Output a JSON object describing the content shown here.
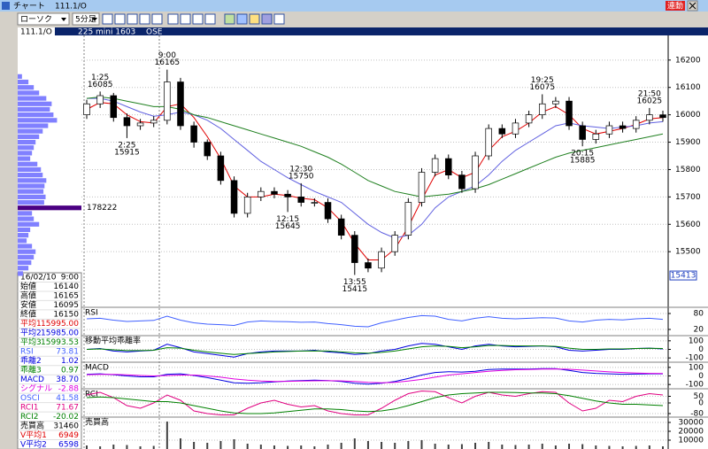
{
  "window": {
    "title": "チャート",
    "symbol_title": "111.1/O",
    "link_button": "連動",
    "chart_style": "ローソク",
    "interval": "5分足",
    "symbol": "111.1/O",
    "contract": "225 mini 1603",
    "exchange": "OSE"
  },
  "info_panel": {
    "date": "16/02/10",
    "time": "9:00",
    "rows": [
      {
        "label": "始値",
        "value": "16140",
        "color": "#000000"
      },
      {
        "label": "高値",
        "value": "16165",
        "color": "#000000"
      },
      {
        "label": "安値",
        "value": "16095",
        "color": "#000000"
      },
      {
        "label": "終値",
        "value": "16150",
        "color": "#000000"
      },
      {
        "label": "平均1",
        "value": "15995.00",
        "color": "#e00000"
      },
      {
        "label": "平均2",
        "value": "15985.00",
        "color": "#0000e0"
      },
      {
        "label": "平均3",
        "value": "15993.53",
        "color": "#008000"
      },
      {
        "label": "RSI",
        "value": "73.81",
        "color": "#4060ff"
      },
      {
        "label": "乖離2",
        "value": "1.02",
        "color": "#0000e0"
      },
      {
        "label": "乖離3",
        "value": "0.97",
        "color": "#008000"
      },
      {
        "label": "MACD",
        "value": "38.70",
        "color": "#0000e0"
      },
      {
        "label": "シグナル",
        "value": "-2.88",
        "color": "#e000e0"
      },
      {
        "label": "OSCI",
        "value": "41.58",
        "color": "#4060ff"
      },
      {
        "label": "RCI1",
        "value": "71.67",
        "color": "#e00080"
      },
      {
        "label": "RCI2",
        "value": "-20.02",
        "color": "#008000"
      },
      {
        "label": "売買高",
        "value": "31460",
        "color": "#000000"
      },
      {
        "label": "V平均1",
        "value": "6949",
        "color": "#e00000"
      },
      {
        "label": "V平均2",
        "value": "6598",
        "color": "#0000e0"
      }
    ]
  },
  "chart_data": [
    {
      "type": "candlestick",
      "up_color": "#ffffff",
      "down_color": "#000000",
      "open": [
        16000,
        16040,
        16070,
        15990,
        15960,
        15970,
        15980,
        16120,
        15960,
        15900,
        15850,
        15760,
        15640,
        15700,
        15720,
        15710,
        15700,
        15680,
        15680,
        15620,
        15560,
        15460,
        15440,
        15500,
        15560,
        15680,
        15790,
        15840,
        15780,
        15730,
        15850,
        15950,
        15930,
        15970,
        16000,
        16040,
        16050,
        15960,
        15910,
        15930,
        15960,
        15950,
        15980,
        16000
      ],
      "high": [
        16055,
        16085,
        16080,
        16005,
        15985,
        15995,
        16165,
        16135,
        15975,
        15910,
        15865,
        15775,
        15715,
        15735,
        15735,
        15725,
        15750,
        15695,
        15695,
        15635,
        15575,
        15475,
        15515,
        15575,
        15695,
        15805,
        15855,
        15855,
        15795,
        15865,
        15965,
        15965,
        15985,
        16015,
        16075,
        16065,
        16065,
        15975,
        15945,
        15975,
        15975,
        15995,
        16025,
        16015
      ],
      "low": [
        15985,
        16025,
        15975,
        15915,
        15945,
        15955,
        15965,
        15945,
        15880,
        15835,
        15745,
        15625,
        15625,
        15685,
        15695,
        15645,
        15665,
        15665,
        15605,
        15545,
        15415,
        15425,
        15425,
        15485,
        15545,
        15665,
        15775,
        15765,
        15715,
        15715,
        15835,
        15915,
        15915,
        15955,
        15985,
        16025,
        15945,
        15885,
        15895,
        15915,
        15935,
        15935,
        15965,
        15975
      ],
      "close": [
        16040,
        16070,
        15990,
        15960,
        15970,
        15980,
        16120,
        15960,
        15900,
        15850,
        15760,
        15640,
        15700,
        15720,
        15710,
        15700,
        15680,
        15680,
        15620,
        15560,
        15460,
        15440,
        15500,
        15560,
        15680,
        15790,
        15840,
        15780,
        15730,
        15850,
        15950,
        15930,
        15970,
        16000,
        16040,
        16050,
        15960,
        15910,
        15930,
        15960,
        15950,
        15980,
        16000,
        15990
      ],
      "series": [
        {
          "color": "#e00000",
          "values": [
            16020,
            16045,
            16040,
            16000,
            15975,
            15970,
            16030,
            16040,
            15990,
            15920,
            15840,
            15740,
            15700,
            15700,
            15710,
            15705,
            15695,
            15690,
            15660,
            15610,
            15530,
            15470,
            15470,
            15510,
            15590,
            15690,
            15780,
            15800,
            15770,
            15790,
            15870,
            15920,
            15940,
            15970,
            16010,
            16030,
            16000,
            15950,
            15930,
            15940,
            15950,
            15965,
            15985,
            15990
          ]
        },
        {
          "color": "#6060e0",
          "values": [
            16060,
            16060,
            16050,
            16030,
            16010,
            15995,
            16000,
            16010,
            16000,
            15980,
            15950,
            15910,
            15870,
            15830,
            15800,
            15770,
            15745,
            15720,
            15700,
            15680,
            15640,
            15600,
            15570,
            15550,
            15560,
            15600,
            15660,
            15700,
            15720,
            15740,
            15780,
            15830,
            15870,
            15900,
            15930,
            15960,
            15970,
            15960,
            15955,
            15950,
            15955,
            15960,
            15970,
            15975
          ]
        },
        {
          "color": "#208020",
          "values": [
            16060,
            16065,
            16060,
            16050,
            16040,
            16030,
            16030,
            16020,
            16000,
            15990,
            15975,
            15960,
            15945,
            15930,
            15915,
            15900,
            15885,
            15865,
            15845,
            15820,
            15790,
            15760,
            15740,
            15720,
            15710,
            15700,
            15705,
            15710,
            15720,
            15730,
            15745,
            15765,
            15785,
            15805,
            15825,
            15845,
            15860,
            15870,
            15880,
            15890,
            15900,
            15910,
            15920,
            15930
          ]
        }
      ],
      "ylim": [
        15300,
        16290
      ],
      "yticks": [
        15500,
        15600,
        15700,
        15800,
        15900,
        16000,
        16100,
        16200
      ],
      "grid": true,
      "annotations": [
        {
          "time": "1:25",
          "value": 16085
        },
        {
          "time": "9:00",
          "value": 16165
        },
        {
          "time": "2:25",
          "value": 15915
        },
        {
          "time": "12:30",
          "value": 15750
        },
        {
          "time": "12:15",
          "value": 15645
        },
        {
          "time": "13:55",
          "value": 15415
        },
        {
          "time": "19:25",
          "value": 16075
        },
        {
          "time": "20:15",
          "value": 15885
        },
        {
          "time": "21:50",
          "value": 16025
        }
      ],
      "price_tag": 15413,
      "volume_profile": {
        "color": "#8080ff",
        "highlight_color": "#4b0082",
        "prices": [
          16140,
          16120,
          16100,
          16080,
          16060,
          16040,
          16020,
          16000,
          15980,
          15960,
          15940,
          15920,
          15900,
          15880,
          15860,
          15840,
          15820,
          15800,
          15780,
          15760,
          15740,
          15720,
          15700,
          15680,
          15660,
          15640,
          15620,
          15600,
          15580,
          15560,
          15540,
          15520,
          15500,
          15480,
          15460,
          15440,
          15420
        ],
        "values": [
          12000,
          30000,
          45000,
          60000,
          80000,
          95000,
          90000,
          100000,
          110000,
          85000,
          70000,
          60000,
          50000,
          45000,
          40000,
          35000,
          55000,
          65000,
          70000,
          80000,
          75000,
          72000,
          78000,
          74000,
          178222,
          40000,
          45000,
          60000,
          35000,
          30000,
          25000,
          40000,
          50000,
          45000,
          38000,
          30000,
          15000
        ]
      }
    },
    {
      "type": "line",
      "title": "RSI",
      "ylim": [
        0,
        100
      ],
      "yticks": [
        20,
        80
      ],
      "series": [
        {
          "color": "#4060ff",
          "values": [
            60,
            62,
            55,
            50,
            52,
            54,
            70,
            55,
            45,
            40,
            38,
            35,
            48,
            52,
            50,
            49,
            47,
            48,
            42,
            38,
            32,
            30,
            45,
            55,
            65,
            72,
            70,
            58,
            52,
            62,
            68,
            62,
            60,
            62,
            64,
            63,
            52,
            48,
            55,
            58,
            56,
            60,
            62,
            58
          ]
        }
      ]
    },
    {
      "type": "line",
      "title": "移動平均乖離率",
      "ylim": [
        -150,
        150
      ],
      "yticks": [
        100,
        0,
        -100
      ],
      "series": [
        {
          "color": "#0000e0",
          "values": [
            0,
            10,
            -20,
            -30,
            -20,
            -10,
            60,
            20,
            -30,
            -50,
            -70,
            -90,
            -50,
            -30,
            -20,
            -20,
            -20,
            -10,
            -30,
            -40,
            -60,
            -50,
            -20,
            0,
            40,
            70,
            60,
            30,
            0,
            40,
            60,
            40,
            30,
            35,
            40,
            30,
            -10,
            -20,
            -10,
            0,
            0,
            10,
            15,
            5
          ]
        },
        {
          "color": "#008000",
          "values": [
            0,
            5,
            -5,
            -15,
            -15,
            -10,
            20,
            15,
            -10,
            -30,
            -45,
            -60,
            -50,
            -40,
            -30,
            -25,
            -20,
            -18,
            -20,
            -30,
            -40,
            -45,
            -35,
            -20,
            5,
            30,
            40,
            35,
            20,
            30,
            45,
            45,
            40,
            40,
            40,
            35,
            15,
            0,
            0,
            5,
            5,
            10,
            12,
            10
          ]
        }
      ]
    },
    {
      "type": "line",
      "title": "MACD",
      "ylim": [
        -150,
        150
      ],
      "yticks": [
        100,
        0,
        -100
      ],
      "series": [
        {
          "color": "#0000e0",
          "values": [
            20,
            25,
            15,
            0,
            -10,
            -10,
            20,
            25,
            5,
            -20,
            -50,
            -80,
            -85,
            -80,
            -70,
            -60,
            -55,
            -50,
            -55,
            -65,
            -85,
            -95,
            -85,
            -65,
            -30,
            10,
            40,
            50,
            45,
            55,
            75,
            80,
            80,
            80,
            85,
            85,
            65,
            40,
            30,
            25,
            20,
            22,
            25,
            25
          ]
        },
        {
          "color": "#e000e0",
          "values": [
            15,
            18,
            18,
            12,
            5,
            0,
            5,
            10,
            10,
            0,
            -15,
            -35,
            -50,
            -60,
            -65,
            -63,
            -60,
            -57,
            -56,
            -58,
            -65,
            -75,
            -80,
            -75,
            -60,
            -40,
            -15,
            10,
            25,
            40,
            55,
            65,
            72,
            76,
            80,
            82,
            78,
            68,
            58,
            48,
            40,
            34,
            30,
            28
          ]
        }
      ]
    },
    {
      "type": "line",
      "title": "RCI",
      "ylim": [
        -100,
        100
      ],
      "yticks": [
        50,
        0,
        -80
      ],
      "series": [
        {
          "color": "#e00080",
          "values": [
            60,
            80,
            40,
            -20,
            -40,
            0,
            60,
            20,
            -60,
            -80,
            -90,
            -90,
            -40,
            0,
            20,
            -10,
            -30,
            -20,
            -60,
            -80,
            -90,
            -90,
            -40,
            20,
            70,
            90,
            85,
            40,
            0,
            50,
            80,
            60,
            50,
            70,
            85,
            80,
            0,
            -60,
            -40,
            20,
            10,
            50,
            70,
            60
          ]
        },
        {
          "color": "#008000",
          "values": [
            40,
            45,
            40,
            30,
            20,
            10,
            10,
            0,
            -20,
            -40,
            -60,
            -75,
            -80,
            -80,
            -75,
            -65,
            -55,
            -45,
            -45,
            -50,
            -60,
            -65,
            -60,
            -45,
            -20,
            10,
            40,
            60,
            70,
            75,
            80,
            80,
            78,
            75,
            75,
            70,
            55,
            35,
            15,
            0,
            -10,
            -10,
            -15,
            -20
          ]
        }
      ]
    },
    {
      "type": "bar",
      "title": "売買高",
      "color": "#404040",
      "ylim": [
        0,
        35000
      ],
      "yticks": [
        30000,
        20000,
        10000
      ],
      "values": [
        4000,
        3000,
        5000,
        4500,
        3000,
        3500,
        31000,
        12000,
        8000,
        7000,
        9000,
        11000,
        6000,
        5000,
        4000,
        3500,
        4000,
        3000,
        5000,
        7000,
        12000,
        9000,
        8000,
        7000,
        9000,
        10000,
        6000,
        5000,
        5500,
        7000,
        8000,
        5000,
        4500,
        5000,
        6000,
        4000,
        6000,
        5500,
        4000,
        3500,
        3000,
        3500,
        4000,
        3000
      ]
    }
  ]
}
